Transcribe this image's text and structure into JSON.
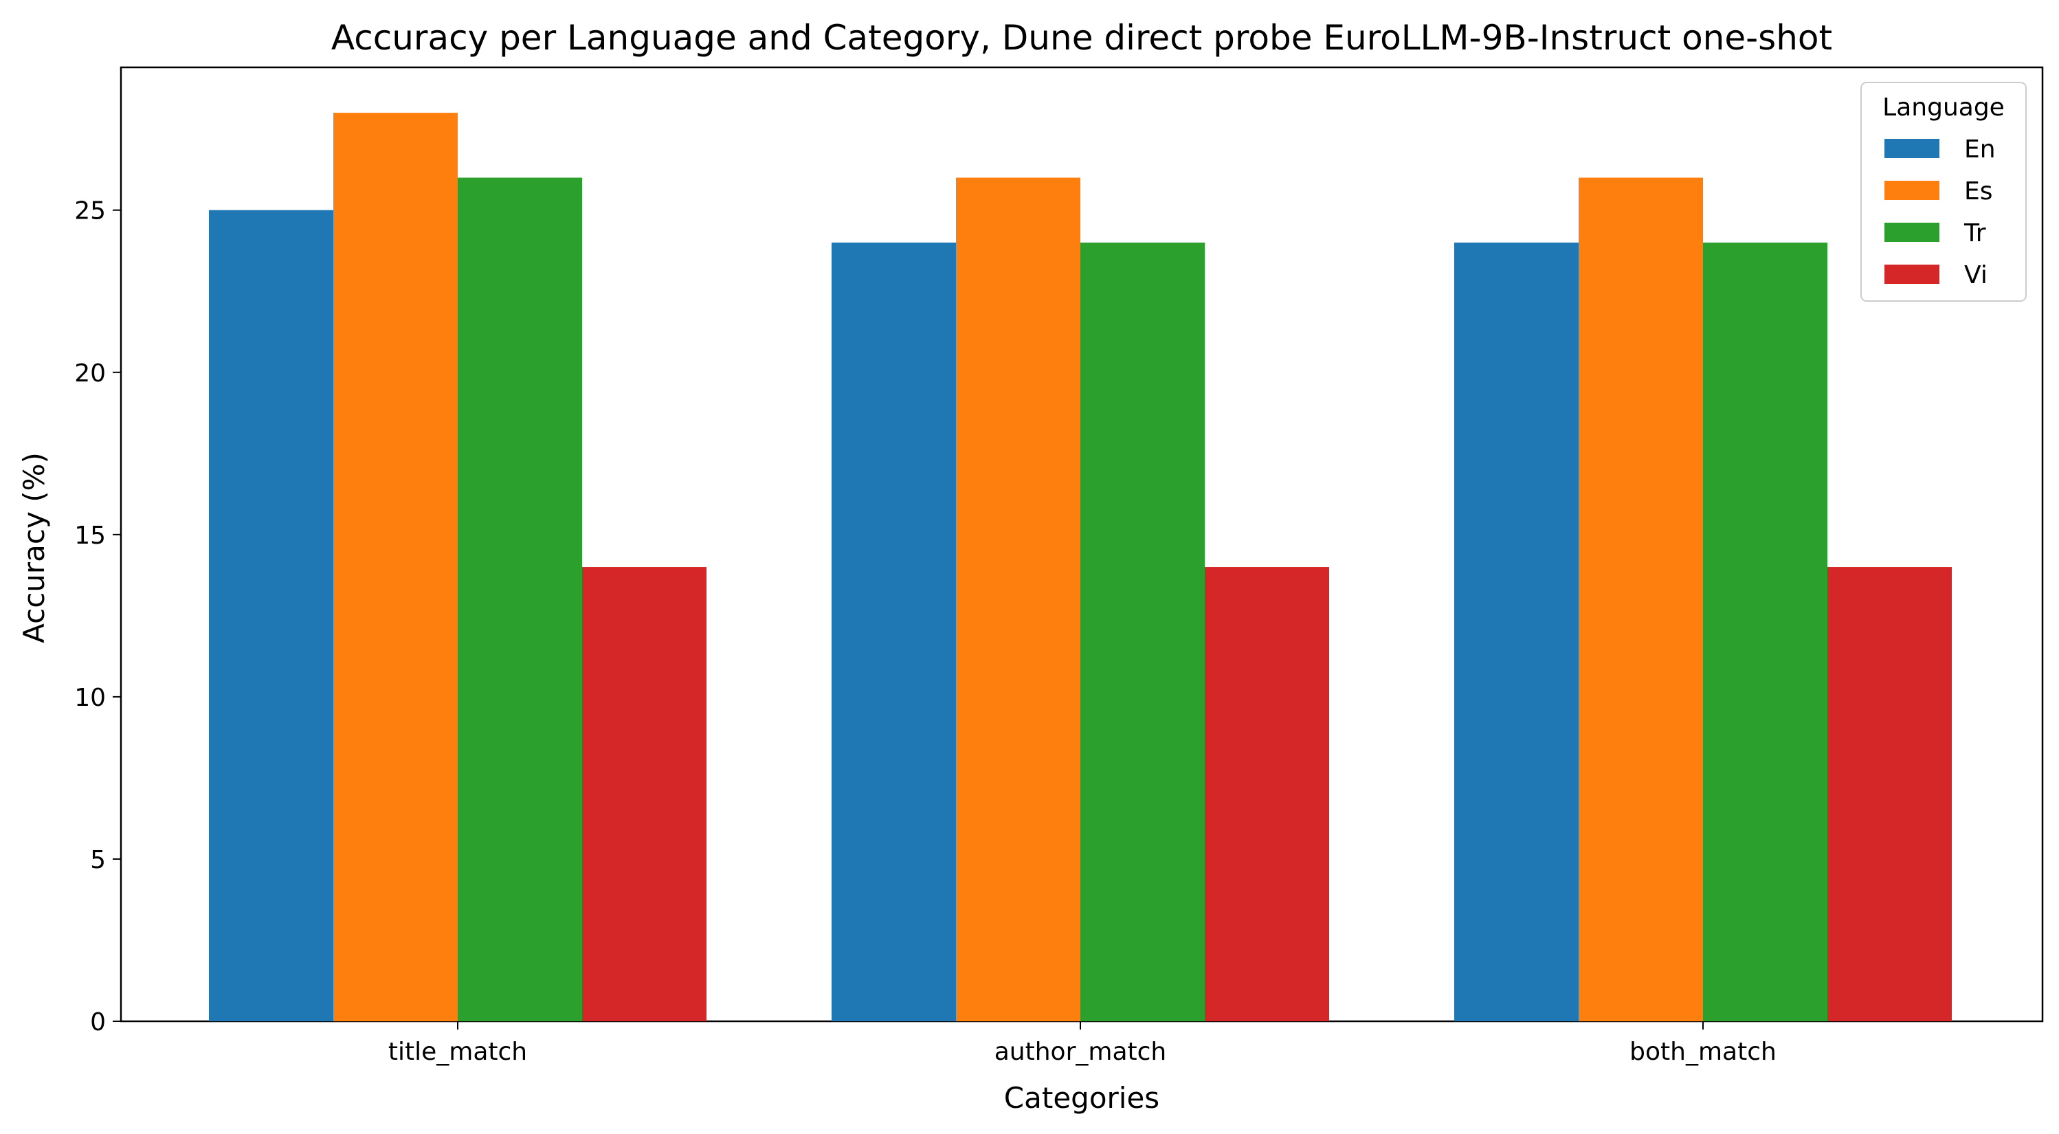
{
  "chart_data": {
    "type": "bar",
    "title": "Accuracy per Language and Category, Dune direct probe EuroLLM-9B-Instruct one-shot",
    "xlabel": "Categories",
    "ylabel": "Accuracy (%)",
    "categories": [
      "title_match",
      "author_match",
      "both_match"
    ],
    "series": [
      {
        "name": "En",
        "values": [
          25,
          24,
          24
        ],
        "color": "#1f77b4"
      },
      {
        "name": "Es",
        "values": [
          28,
          26,
          26
        ],
        "color": "#ff7f0e"
      },
      {
        "name": "Tr",
        "values": [
          26,
          24,
          24
        ],
        "color": "#2ca02c"
      },
      {
        "name": "Vi",
        "values": [
          14,
          14,
          14
        ],
        "color": "#d62728"
      }
    ],
    "ylim": [
      0,
      29.4
    ],
    "yticks": [
      0,
      5,
      10,
      15,
      20,
      25
    ],
    "grid": false,
    "legend": {
      "title": "Language",
      "placement": "top-right"
    }
  }
}
